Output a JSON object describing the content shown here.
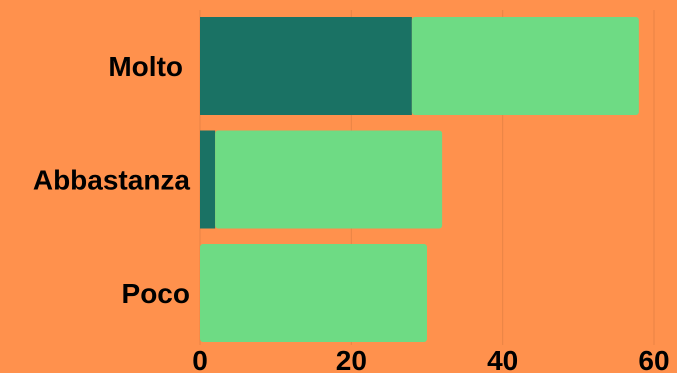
{
  "chart_data": {
    "type": "bar",
    "orientation": "horizontal",
    "stacked": true,
    "categories": [
      "Molto",
      "Abbastanza",
      "Poco"
    ],
    "series": [
      {
        "values": [
          28,
          2,
          0
        ],
        "color": "#1A7264"
      },
      {
        "values": [
          30,
          30,
          30
        ],
        "color": "#6EDB84"
      }
    ],
    "x_ticks": [
      "0",
      "20",
      "40",
      "60"
    ],
    "xlim": [
      0,
      60
    ],
    "grid": true,
    "legend": "none",
    "title": "",
    "xlabel": "",
    "ylabel": ""
  },
  "colors": {
    "background": "#FF914D",
    "gridline": "#E88445"
  }
}
